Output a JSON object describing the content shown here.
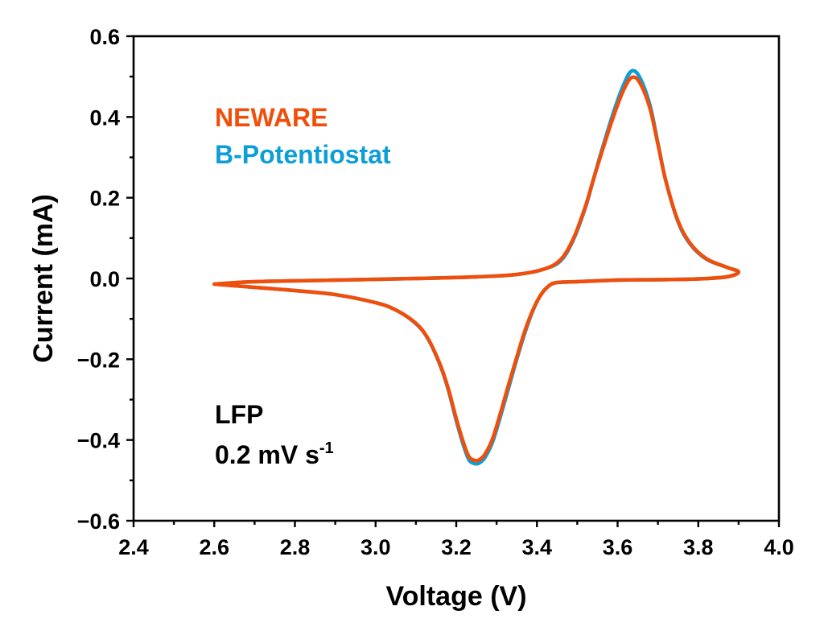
{
  "chart_data": {
    "type": "line",
    "title": "",
    "xlabel": "Voltage (V)",
    "ylabel": "Current (mA)",
    "xlim": [
      2.4,
      4.0
    ],
    "ylim": [
      -0.6,
      0.6
    ],
    "grid": false,
    "x_ticks": [
      "2.4",
      "2.6",
      "2.8",
      "3.0",
      "3.2",
      "3.4",
      "3.6",
      "3.8",
      "4.0"
    ],
    "x_tick_values": [
      2.4,
      2.6,
      2.8,
      3.0,
      3.2,
      3.4,
      3.6,
      3.8,
      4.0
    ],
    "x_minor_tick_values": [
      2.5,
      2.7,
      2.9,
      3.1,
      3.3,
      3.5,
      3.7,
      3.9
    ],
    "y_ticks": [
      "0.6",
      "0.4",
      "0.2",
      "0.0",
      "−0.2",
      "−0.4",
      "−0.6"
    ],
    "y_tick_values": [
      0.6,
      0.4,
      0.2,
      0.0,
      -0.2,
      -0.4,
      -0.6
    ],
    "y_minor_tick_values": [
      0.5,
      0.3,
      0.1,
      -0.1,
      -0.3,
      -0.5
    ],
    "legend": {
      "placement": "top-left",
      "entries": [
        {
          "label": "NEWARE",
          "color": "#F04E0A"
        },
        {
          "label": "B-Potentiostat",
          "color": "#0C9ED6"
        }
      ]
    },
    "annotations": {
      "sample": "LFP",
      "scan_rate_main": "0.2 mV s",
      "scan_rate_sup": "-1"
    },
    "series": [
      {
        "name": "B-Potentiostat",
        "color": "#0C9ED6",
        "x": [
          2.6,
          2.7,
          2.9,
          3.1,
          3.25,
          3.35,
          3.42,
          3.46,
          3.49,
          3.52,
          3.54,
          3.56,
          3.59,
          3.615,
          3.635,
          3.655,
          3.68,
          3.7,
          3.72,
          3.75,
          3.78,
          3.82,
          3.87,
          3.9,
          3.87,
          3.8,
          3.7,
          3.6,
          3.5,
          3.45,
          3.43,
          3.41,
          3.39,
          3.37,
          3.35,
          3.33,
          3.31,
          3.29,
          3.27,
          3.255,
          3.244,
          3.232,
          3.22,
          3.2,
          3.18,
          3.16,
          3.13,
          3.1,
          3.05,
          3.0,
          2.9,
          2.8,
          2.7,
          2.6
        ],
        "y": [
          -0.014,
          -0.008,
          -0.004,
          0.0,
          0.004,
          0.01,
          0.024,
          0.045,
          0.095,
          0.175,
          0.245,
          0.315,
          0.412,
          0.48,
          0.514,
          0.498,
          0.43,
          0.335,
          0.24,
          0.14,
          0.085,
          0.048,
          0.028,
          0.016,
          0.004,
          -0.001,
          -0.003,
          -0.004,
          -0.008,
          -0.01,
          -0.018,
          -0.04,
          -0.08,
          -0.135,
          -0.2,
          -0.27,
          -0.34,
          -0.405,
          -0.445,
          -0.458,
          -0.458,
          -0.45,
          -0.42,
          -0.352,
          -0.275,
          -0.215,
          -0.15,
          -0.112,
          -0.078,
          -0.06,
          -0.04,
          -0.03,
          -0.022,
          -0.014
        ]
      },
      {
        "name": "NEWARE",
        "color": "#F04E0A",
        "x": [
          2.6,
          2.7,
          2.9,
          3.1,
          3.25,
          3.35,
          3.42,
          3.46,
          3.49,
          3.52,
          3.54,
          3.56,
          3.59,
          3.615,
          3.635,
          3.655,
          3.68,
          3.7,
          3.72,
          3.75,
          3.78,
          3.82,
          3.87,
          3.9,
          3.87,
          3.8,
          3.7,
          3.6,
          3.5,
          3.45,
          3.43,
          3.41,
          3.39,
          3.37,
          3.35,
          3.33,
          3.31,
          3.29,
          3.27,
          3.255,
          3.244,
          3.232,
          3.22,
          3.2,
          3.18,
          3.16,
          3.13,
          3.1,
          3.05,
          3.0,
          2.9,
          2.8,
          2.7,
          2.6
        ],
        "y": [
          -0.014,
          -0.008,
          -0.004,
          0.0,
          0.004,
          0.01,
          0.024,
          0.048,
          0.098,
          0.178,
          0.245,
          0.31,
          0.402,
          0.467,
          0.498,
          0.485,
          0.422,
          0.332,
          0.24,
          0.142,
          0.087,
          0.049,
          0.028,
          0.016,
          0.004,
          -0.001,
          -0.003,
          -0.004,
          -0.008,
          -0.01,
          -0.018,
          -0.04,
          -0.078,
          -0.13,
          -0.195,
          -0.262,
          -0.332,
          -0.397,
          -0.437,
          -0.45,
          -0.45,
          -0.442,
          -0.413,
          -0.347,
          -0.272,
          -0.213,
          -0.149,
          -0.111,
          -0.078,
          -0.06,
          -0.04,
          -0.03,
          -0.022,
          -0.014
        ]
      }
    ]
  }
}
